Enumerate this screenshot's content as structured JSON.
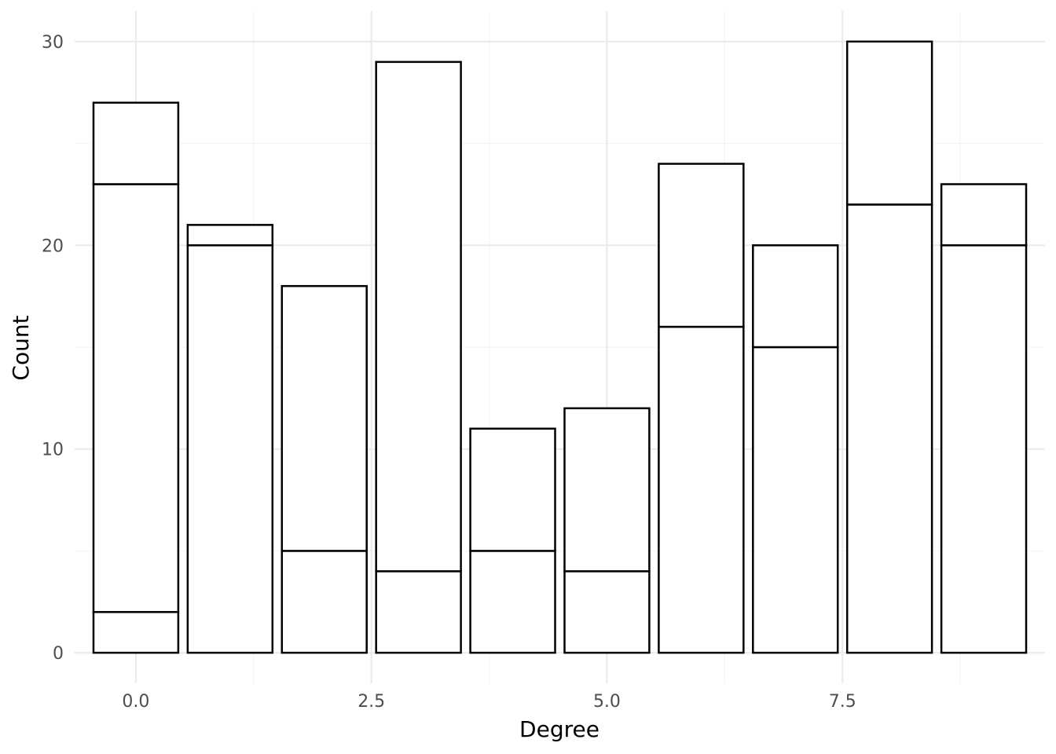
{
  "chart_data": {
    "type": "bar",
    "title": "",
    "xlabel": "Degree",
    "ylabel": "Count",
    "stacked": true,
    "bar_width": 0.9,
    "xlim": [
      -0.65,
      9.65
    ],
    "ylim": [
      -1.5,
      31.5
    ],
    "x_ticks": [
      0.0,
      2.5,
      5.0,
      7.5
    ],
    "x_tick_labels": [
      "0.0",
      "2.5",
      "5.0",
      "7.5"
    ],
    "y_ticks": [
      0,
      10,
      20,
      30
    ],
    "y_tick_labels": [
      "0",
      "10",
      "20",
      "30"
    ],
    "grid": true,
    "legend": "none",
    "categories": [
      0,
      1,
      2,
      3,
      4,
      5,
      6,
      7,
      8,
      9
    ],
    "totals": [
      27,
      21,
      18,
      29,
      11,
      12,
      24,
      20,
      30,
      23
    ],
    "segment_boundaries": [
      [
        2,
        23
      ],
      [
        20
      ],
      [
        5
      ],
      [
        4
      ],
      [
        5
      ],
      [
        4
      ],
      [
        16
      ],
      [
        15
      ],
      [
        22
      ],
      [
        20
      ]
    ]
  }
}
